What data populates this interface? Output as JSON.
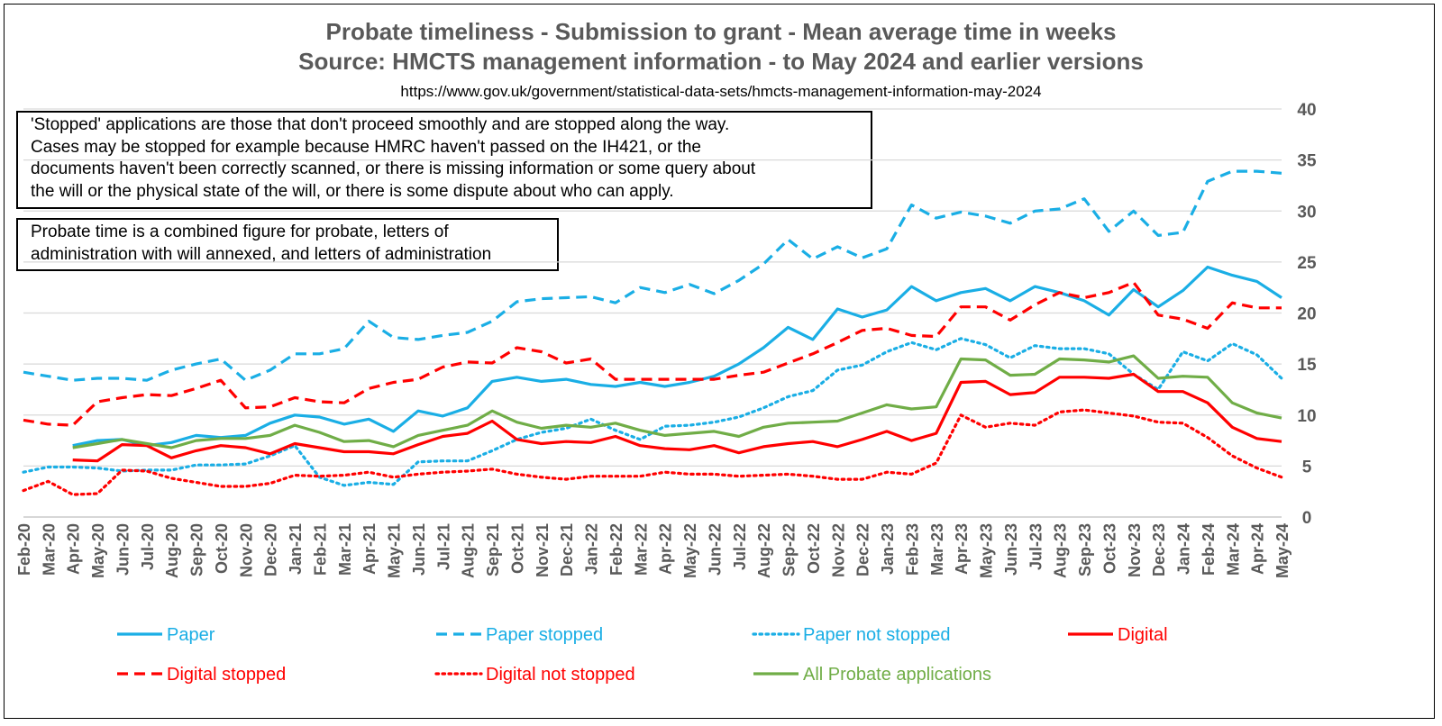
{
  "chart_data": {
    "type": "line",
    "title": "Probate timeliness - Submission to grant - Mean average time in weeks",
    "subtitle": "Source: HMCTS management information - to May 2024 and earlier versions",
    "source_url": "https://www.gov.uk/government/statistical-data-sets/hmcts-management-information-may-2024",
    "notes": [
      [
        "'Stopped' applications are those that don't proceed smoothly and are stopped along the way.",
        "Cases may be stopped for example because HMRC haven't passed on the IH421, or the",
        "documents haven't been correctly scanned, or there is missing information or some query about",
        "the will or the physical state of the will, or there is some dispute about who can apply."
      ],
      [
        "Probate time is a combined figure for probate, letters of",
        "administration with will annexed, and letters of administration"
      ]
    ],
    "ylim": [
      0,
      40
    ],
    "yticks": [
      0,
      5,
      10,
      15,
      20,
      25,
      30,
      35,
      40
    ],
    "ylabel_position": "right",
    "grid": "horizontal",
    "legend_position": "bottom",
    "categories": [
      "Feb-20",
      "Mar-20",
      "Apr-20",
      "May-20",
      "Jun-20",
      "Jul-20",
      "Aug-20",
      "Sep-20",
      "Oct-20",
      "Nov-20",
      "Dec-20",
      "Jan-21",
      "Feb-21",
      "Mar-21",
      "Apr-21",
      "May-21",
      "Jun-21",
      "Jul-21",
      "Aug-21",
      "Sep-21",
      "Oct-21",
      "Nov-21",
      "Dec-21",
      "Jan-22",
      "Feb-22",
      "Mar-22",
      "Apr-22",
      "May-22",
      "Jun-22",
      "Jul-22",
      "Aug-22",
      "Sep-22",
      "Oct-22",
      "Nov-22",
      "Dec-22",
      "Jan-23",
      "Feb-23",
      "Mar-23",
      "Apr-23",
      "May-23",
      "Jun-23",
      "Jul-23",
      "Aug-23",
      "Sep-23",
      "Oct-23",
      "Nov-23",
      "Dec-23",
      "Jan-24",
      "Feb-24",
      "Mar-24",
      "Apr-24",
      "May-24"
    ],
    "series": [
      {
        "name": "Paper",
        "color": "#1aaee5",
        "dash": "solid",
        "values": [
          null,
          null,
          7.0,
          7.5,
          7.6,
          7.0,
          7.3,
          8.0,
          7.8,
          8.0,
          9.2,
          10.0,
          9.8,
          9.1,
          9.6,
          8.4,
          10.4,
          9.9,
          10.7,
          13.3,
          13.7,
          13.3,
          13.5,
          13.0,
          12.8,
          13.2,
          12.8,
          13.2,
          13.8,
          15.0,
          16.6,
          18.6,
          17.4,
          20.4,
          19.6,
          20.3,
          22.6,
          21.2,
          22.0,
          22.4,
          21.2,
          22.6,
          22.0,
          21.2,
          19.8,
          22.3,
          20.6,
          22.2,
          24.5,
          23.7,
          23.1,
          21.5
        ]
      },
      {
        "name": "Paper stopped",
        "color": "#1aaee5",
        "dash": "dashed",
        "values": [
          14.2,
          13.8,
          13.4,
          13.6,
          13.6,
          13.4,
          14.4,
          15.0,
          15.5,
          13.4,
          14.4,
          16.0,
          16.0,
          16.5,
          19.2,
          17.6,
          17.4,
          17.8,
          18.1,
          19.2,
          21.1,
          21.4,
          21.5,
          21.6,
          21.0,
          22.5,
          22.0,
          22.8,
          21.9,
          23.2,
          24.8,
          27.2,
          25.3,
          26.5,
          25.4,
          26.3,
          30.6,
          29.3,
          29.9,
          29.5,
          28.8,
          30.0,
          30.2,
          31.2,
          28.0,
          30.0,
          27.6,
          27.9,
          32.9,
          33.9,
          33.9,
          33.7
        ]
      },
      {
        "name": "Paper not stopped",
        "color": "#1aaee5",
        "dash": "dotted",
        "values": [
          4.4,
          4.9,
          4.9,
          4.8,
          4.5,
          4.6,
          4.6,
          5.1,
          5.1,
          5.2,
          6.0,
          7.0,
          3.9,
          3.1,
          3.4,
          3.2,
          5.4,
          5.5,
          5.5,
          6.5,
          7.6,
          8.3,
          8.7,
          9.6,
          8.5,
          7.6,
          8.9,
          9.0,
          9.3,
          9.8,
          10.7,
          11.8,
          12.4,
          14.4,
          14.9,
          16.2,
          17.1,
          16.4,
          17.5,
          16.9,
          15.6,
          16.8,
          16.5,
          16.5,
          16.0,
          14.0,
          12.5,
          16.2,
          15.3,
          17.0,
          15.9,
          13.6
        ]
      },
      {
        "name": "Digital",
        "color": "#ff0000",
        "dash": "solid",
        "values": [
          null,
          null,
          5.6,
          5.5,
          7.1,
          7.0,
          5.8,
          6.5,
          7.0,
          6.8,
          6.2,
          7.2,
          6.8,
          6.4,
          6.4,
          6.2,
          7.1,
          7.9,
          8.2,
          9.4,
          7.6,
          7.2,
          7.4,
          7.3,
          7.9,
          7.0,
          6.7,
          6.6,
          7.0,
          6.3,
          6.9,
          7.2,
          7.4,
          6.9,
          7.6,
          8.4,
          7.5,
          8.2,
          13.2,
          13.3,
          12.0,
          12.2,
          13.7,
          13.7,
          13.6,
          14.0,
          12.3,
          12.3,
          11.2,
          8.8,
          7.7,
          7.4
        ]
      },
      {
        "name": "Digital stopped",
        "color": "#ff0000",
        "dash": "dashed",
        "values": [
          9.5,
          9.1,
          9.0,
          11.3,
          11.7,
          12.0,
          11.9,
          12.6,
          13.4,
          10.7,
          10.8,
          11.7,
          11.3,
          11.2,
          12.6,
          13.2,
          13.5,
          14.7,
          15.2,
          15.1,
          16.6,
          16.2,
          15.1,
          15.5,
          13.5,
          13.5,
          13.5,
          13.5,
          13.5,
          13.9,
          14.2,
          15.1,
          16.0,
          17.1,
          18.3,
          18.5,
          17.8,
          17.7,
          20.6,
          20.6,
          19.3,
          20.8,
          22.0,
          21.5,
          22.0,
          23.0,
          19.8,
          19.4,
          18.5,
          21.0,
          20.5,
          20.5
        ]
      },
      {
        "name": "Digital not stopped",
        "color": "#ff0000",
        "dash": "dotted",
        "values": [
          2.6,
          3.5,
          2.2,
          2.3,
          4.6,
          4.5,
          3.8,
          3.4,
          3.0,
          3.0,
          3.3,
          4.1,
          4.0,
          4.1,
          4.4,
          3.9,
          4.2,
          4.4,
          4.5,
          4.7,
          4.2,
          3.9,
          3.7,
          4.0,
          4.0,
          4.0,
          4.4,
          4.2,
          4.2,
          4.0,
          4.1,
          4.2,
          4.0,
          3.7,
          3.7,
          4.4,
          4.2,
          5.3,
          10.0,
          8.8,
          9.2,
          9.0,
          10.3,
          10.5,
          10.2,
          9.9,
          9.3,
          9.2,
          7.8,
          6.0,
          4.8,
          3.9
        ]
      },
      {
        "name": "All Probate applications",
        "color": "#70ad47",
        "dash": "solid",
        "values": [
          null,
          null,
          6.8,
          7.2,
          7.6,
          7.2,
          6.8,
          7.5,
          7.7,
          7.7,
          8.0,
          9.0,
          8.3,
          7.4,
          7.5,
          6.9,
          8.0,
          8.5,
          9.0,
          10.4,
          9.3,
          8.7,
          9.0,
          8.8,
          9.2,
          8.5,
          8.0,
          8.2,
          8.4,
          7.9,
          8.8,
          9.2,
          9.3,
          9.4,
          10.2,
          11.0,
          10.6,
          10.8,
          15.5,
          15.4,
          13.9,
          14.0,
          15.5,
          15.4,
          15.2,
          15.8,
          13.6,
          13.8,
          13.7,
          11.2,
          10.2,
          9.7
        ]
      }
    ]
  }
}
